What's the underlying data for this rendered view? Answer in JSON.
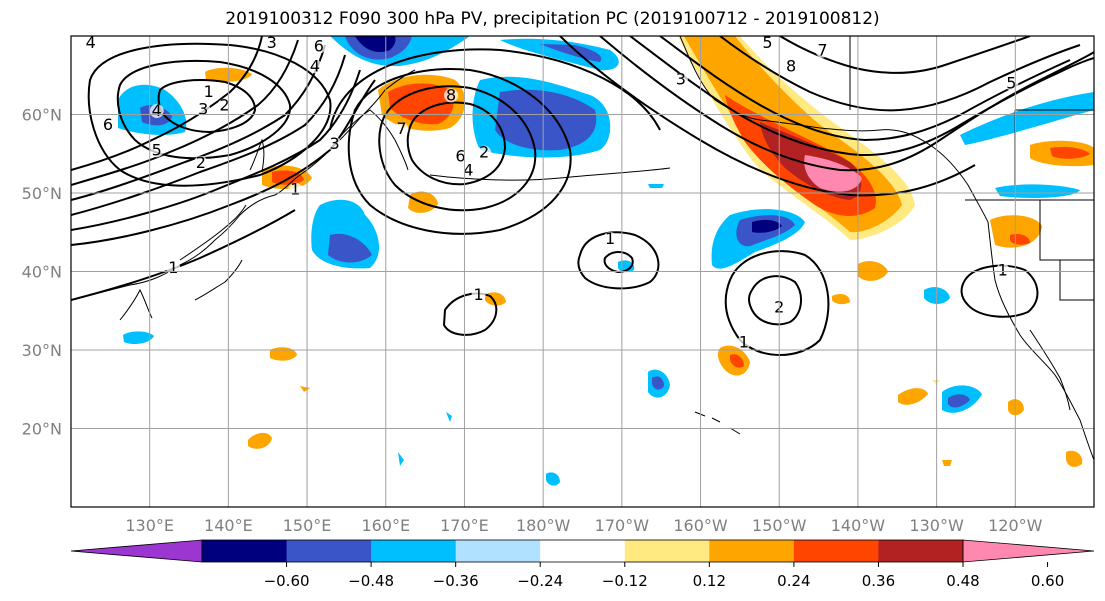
{
  "title": "2019100312 F090 300 hPa PV, precipitation PC (2019100712 - 2019100812)",
  "map": {
    "lat_labels": [
      "60°N",
      "50°N",
      "40°N",
      "30°N",
      "20°N"
    ],
    "lat_values": [
      60,
      50,
      40,
      30,
      20
    ],
    "lon_labels": [
      "130°E",
      "140°E",
      "150°E",
      "160°E",
      "170°E",
      "180°W",
      "170°W",
      "160°W",
      "150°W",
      "140°W",
      "130°W",
      "120°W"
    ],
    "lon_values": [
      130,
      140,
      150,
      160,
      170,
      180,
      190,
      200,
      210,
      220,
      230,
      240
    ],
    "lon_range": [
      120,
      250
    ],
    "lat_range": [
      10,
      70
    ],
    "contour_labels": [
      {
        "text": "4",
        "lon": 122.5,
        "lat": 68.5
      },
      {
        "text": "3",
        "lon": 145.5,
        "lat": 68.5
      },
      {
        "text": "6",
        "lon": 151.5,
        "lat": 68
      },
      {
        "text": "4",
        "lon": 151,
        "lat": 65.5
      },
      {
        "text": "1",
        "lon": 137.5,
        "lat": 62.2
      },
      {
        "text": "2",
        "lon": 139.5,
        "lat": 60.5
      },
      {
        "text": "3",
        "lon": 136.8,
        "lat": 60
      },
      {
        "text": "4",
        "lon": 130.9,
        "lat": 59.8
      },
      {
        "text": "6",
        "lon": 124.7,
        "lat": 58
      },
      {
        "text": "5",
        "lon": 130.9,
        "lat": 54.8
      },
      {
        "text": "2",
        "lon": 136.5,
        "lat": 53.2
      },
      {
        "text": "1",
        "lon": 148.5,
        "lat": 49.8
      },
      {
        "text": "1",
        "lon": 133,
        "lat": 39.8
      },
      {
        "text": "3",
        "lon": 153.5,
        "lat": 55.6
      },
      {
        "text": "7",
        "lon": 162,
        "lat": 57.5
      },
      {
        "text": "8",
        "lon": 168.3,
        "lat": 61.8
      },
      {
        "text": "6",
        "lon": 169.5,
        "lat": 54
      },
      {
        "text": "2",
        "lon": 172.5,
        "lat": 54.5
      },
      {
        "text": "4",
        "lon": 170.5,
        "lat": 52.2
      },
      {
        "text": "5",
        "lon": 208.5,
        "lat": 68.5
      },
      {
        "text": "7",
        "lon": 215.5,
        "lat": 67.5
      },
      {
        "text": "8",
        "lon": 211.5,
        "lat": 65.5
      },
      {
        "text": "3",
        "lon": 197.5,
        "lat": 63.8
      },
      {
        "text": "1",
        "lon": 188.5,
        "lat": 43.5
      },
      {
        "text": "1",
        "lon": 171.8,
        "lat": 36.4
      },
      {
        "text": "2",
        "lon": 210,
        "lat": 34.8
      },
      {
        "text": "1",
        "lon": 205.5,
        "lat": 30.3
      },
      {
        "text": "1",
        "lon": 238.4,
        "lat": 39.5
      },
      {
        "text": "5",
        "lon": 239.5,
        "lat": 63.3
      }
    ]
  },
  "colorbar": {
    "tick_labels": [
      "−0.60",
      "−0.48",
      "−0.36",
      "−0.24",
      "−0.12",
      "0.12",
      "0.24",
      "0.36",
      "0.48",
      "0.60"
    ],
    "colors": [
      "#9b36d0",
      "#00007f",
      "#3a55c8",
      "#00bfff",
      "#b0e2ff",
      "#ffffff",
      "#ffe980",
      "#ffa500",
      "#ff4500",
      "#b22222",
      "#ff88b0"
    ]
  }
}
